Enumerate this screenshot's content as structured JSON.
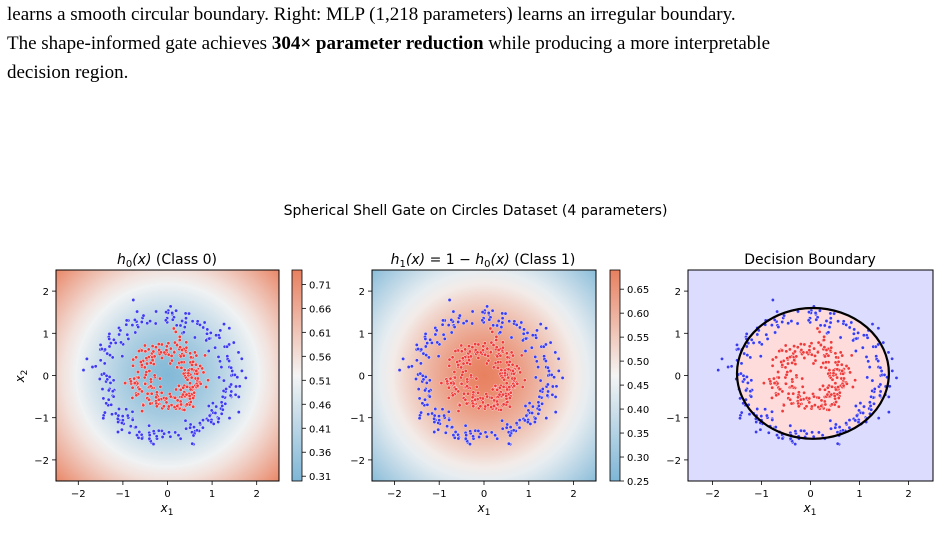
{
  "caption": {
    "line1": "learns a smooth circular boundary. Right: MLP (1,218 parameters) learns an irregular boundary.",
    "line2_pre": "The shape-informed gate achieves ",
    "line2_bold": "304× parameter reduction",
    "line2_post": " while producing a more interpretable",
    "line3": "decision region."
  },
  "figure_title": "Spherical Shell Gate on Circles Dataset (4 parameters)",
  "colors": {
    "class0_points": "#3b3bf0",
    "class1_points": "#f03b3b",
    "red_high": "#e8805f",
    "blue_low": "#7eb6d6",
    "neutral": "#f4f4f4",
    "region_outside": "#dcdcff",
    "region_inside": "#ffdcdc",
    "boundary": "#000000"
  },
  "chart_data": [
    {
      "type": "heatmap",
      "title_prefix": "h",
      "title_sub": "0",
      "title_suffix": "(x) (Class 0)",
      "xlabel": "x1",
      "ylabel": "x2",
      "x_ticks": [
        -2,
        -1,
        0,
        1,
        2
      ],
      "y_ticks": [
        -2,
        -1,
        0,
        1,
        2
      ],
      "xlim": [
        -2.5,
        2.5
      ],
      "ylim": [
        -2.5,
        2.5
      ],
      "colorbar_ticks": [
        "0.71",
        "0.66",
        "0.61",
        "0.56",
        "0.51",
        "0.46",
        "0.41",
        "0.36",
        "0.31"
      ],
      "colorbar_range": [
        0.3,
        0.74
      ],
      "center_value": 0.31,
      "edge_value": 0.74
    },
    {
      "type": "heatmap",
      "title_full": "h1(x) = 1 − h0(x) (Class 1)",
      "xlabel": "x1",
      "x_ticks": [
        -2,
        -1,
        0,
        1,
        2
      ],
      "y_ticks": [
        -2,
        -1,
        0,
        1,
        2
      ],
      "xlim": [
        -2.5,
        2.5
      ],
      "ylim": [
        -2.5,
        2.5
      ],
      "colorbar_ticks": [
        "0.65",
        "0.60",
        "0.55",
        "0.50",
        "0.45",
        "0.40",
        "0.35",
        "0.30",
        "0.25"
      ],
      "colorbar_range": [
        0.25,
        0.69
      ],
      "center_value": 0.69,
      "edge_value": 0.26
    },
    {
      "type": "scatter",
      "title": "Decision Boundary",
      "xlabel": "x1",
      "x_ticks": [
        -2,
        -1,
        0,
        1,
        2
      ],
      "y_ticks": [
        -2,
        -1,
        0,
        1,
        2
      ],
      "xlim": [
        -2.5,
        2.5
      ],
      "ylim": [
        -2.5,
        2.5
      ],
      "boundary_center": [
        0.05,
        0.05
      ],
      "boundary_radius": 1.55
    }
  ],
  "scatter_data": {
    "outer_ring_radius": 1.45,
    "inner_ring_radius": 0.65,
    "ring_noise": 0.15,
    "n_outer": 250,
    "n_inner": 250,
    "seed": 7
  }
}
